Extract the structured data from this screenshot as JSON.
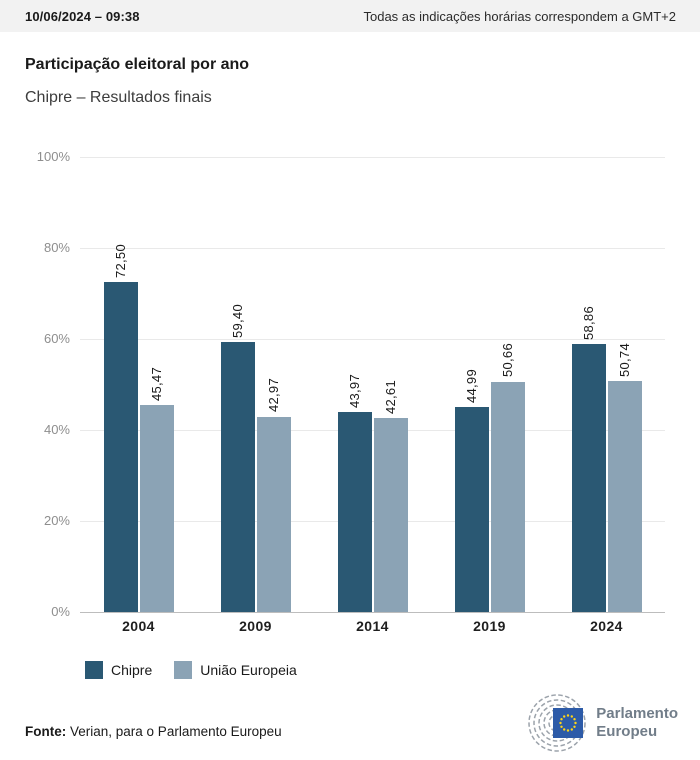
{
  "header": {
    "datetime": "10/06/2024 – 09:38",
    "timezone_note": "Todas as indicações horárias correspondem a GMT+2"
  },
  "title": "Participação eleitoral por ano",
  "subtitle": "Chipre – Resultados finais",
  "colors": {
    "cyprus_bar": "#2a5873",
    "eu_bar": "#8ba3b5",
    "header_bg": "#f2f2f2",
    "gridline": "#e9e9e9",
    "axis_baseline": "#bdbdbd",
    "ytick_text": "#8e8e8e",
    "logo_gray": "#717d89",
    "eu_flag_blue": "#2d5ba8",
    "eu_star_yellow": "#ffd617"
  },
  "chart_data": {
    "type": "bar",
    "title": "Participação eleitoral por ano",
    "subtitle": "Chipre – Resultados finais",
    "categories": [
      "2004",
      "2009",
      "2014",
      "2019",
      "2024"
    ],
    "series": [
      {
        "name": "Chipre",
        "color": "#2a5873",
        "values": [
          72.5,
          59.4,
          43.97,
          44.99,
          58.86
        ],
        "labels": [
          "72,50",
          "59,40",
          "43,97",
          "44,99",
          "58,86"
        ]
      },
      {
        "name": "União Europeia",
        "color": "#8ba3b5",
        "values": [
          45.47,
          42.97,
          42.61,
          50.66,
          50.74
        ],
        "labels": [
          "45,47",
          "42,97",
          "42,61",
          "50,66",
          "50,74"
        ]
      }
    ],
    "xlabel": "",
    "ylabel": "",
    "ylim": [
      0,
      100
    ],
    "ytick_step": 20,
    "ytick_suffix": "%",
    "grid": true,
    "legend_position": "bottom"
  },
  "legend": {
    "items": [
      {
        "label": "Chipre",
        "color": "#2a5873"
      },
      {
        "label": "União Europeia",
        "color": "#8ba3b5"
      }
    ]
  },
  "footer": {
    "source_label": "Fonte:",
    "source_text": " Verian, para o Parlamento Europeu",
    "logo_line1": "Parlamento",
    "logo_line2": "Europeu"
  }
}
